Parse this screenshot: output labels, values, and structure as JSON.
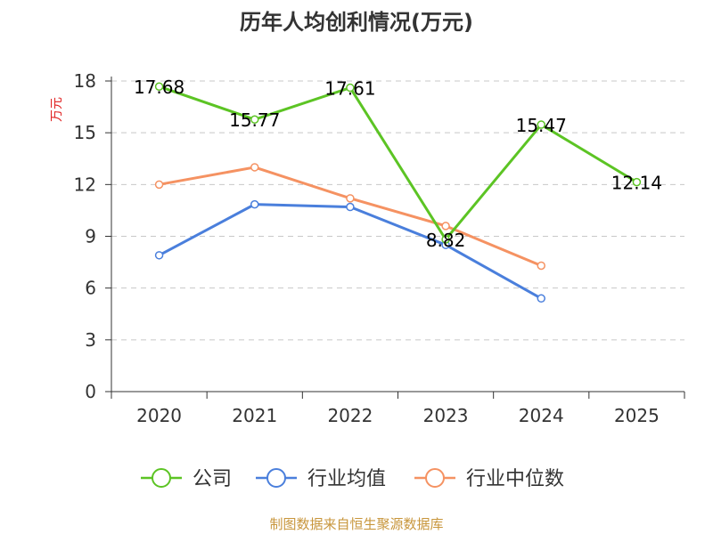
{
  "chart_data": {
    "type": "line",
    "title": "历年人均创利情况(万元)",
    "ylabel": "万元",
    "xlabel": "",
    "ylim": [
      0,
      18
    ],
    "yticks": [
      0,
      3,
      6,
      9,
      12,
      15,
      18
    ],
    "categories": [
      "2020",
      "2021",
      "2022",
      "2023",
      "2024",
      "2025"
    ],
    "grid": true,
    "legend_position": "bottom",
    "series": [
      {
        "name": "公司",
        "color": "#5cc424",
        "values": [
          17.68,
          15.77,
          17.61,
          8.82,
          15.47,
          12.14
        ],
        "labels": [
          "17.68",
          "15.77",
          "17.61",
          "8.82",
          "15.47",
          "12.14"
        ],
        "show_labels": true
      },
      {
        "name": "行业均值",
        "color": "#4a7fdc",
        "values": [
          7.9,
          10.85,
          10.7,
          8.5,
          5.4,
          null
        ],
        "show_labels": false
      },
      {
        "name": "行业中位数",
        "color": "#f59262",
        "values": [
          12.0,
          13.0,
          11.2,
          9.6,
          7.3,
          null
        ],
        "show_labels": false
      }
    ]
  },
  "footer": {
    "source": "制图数据来自恒生聚源数据库"
  }
}
